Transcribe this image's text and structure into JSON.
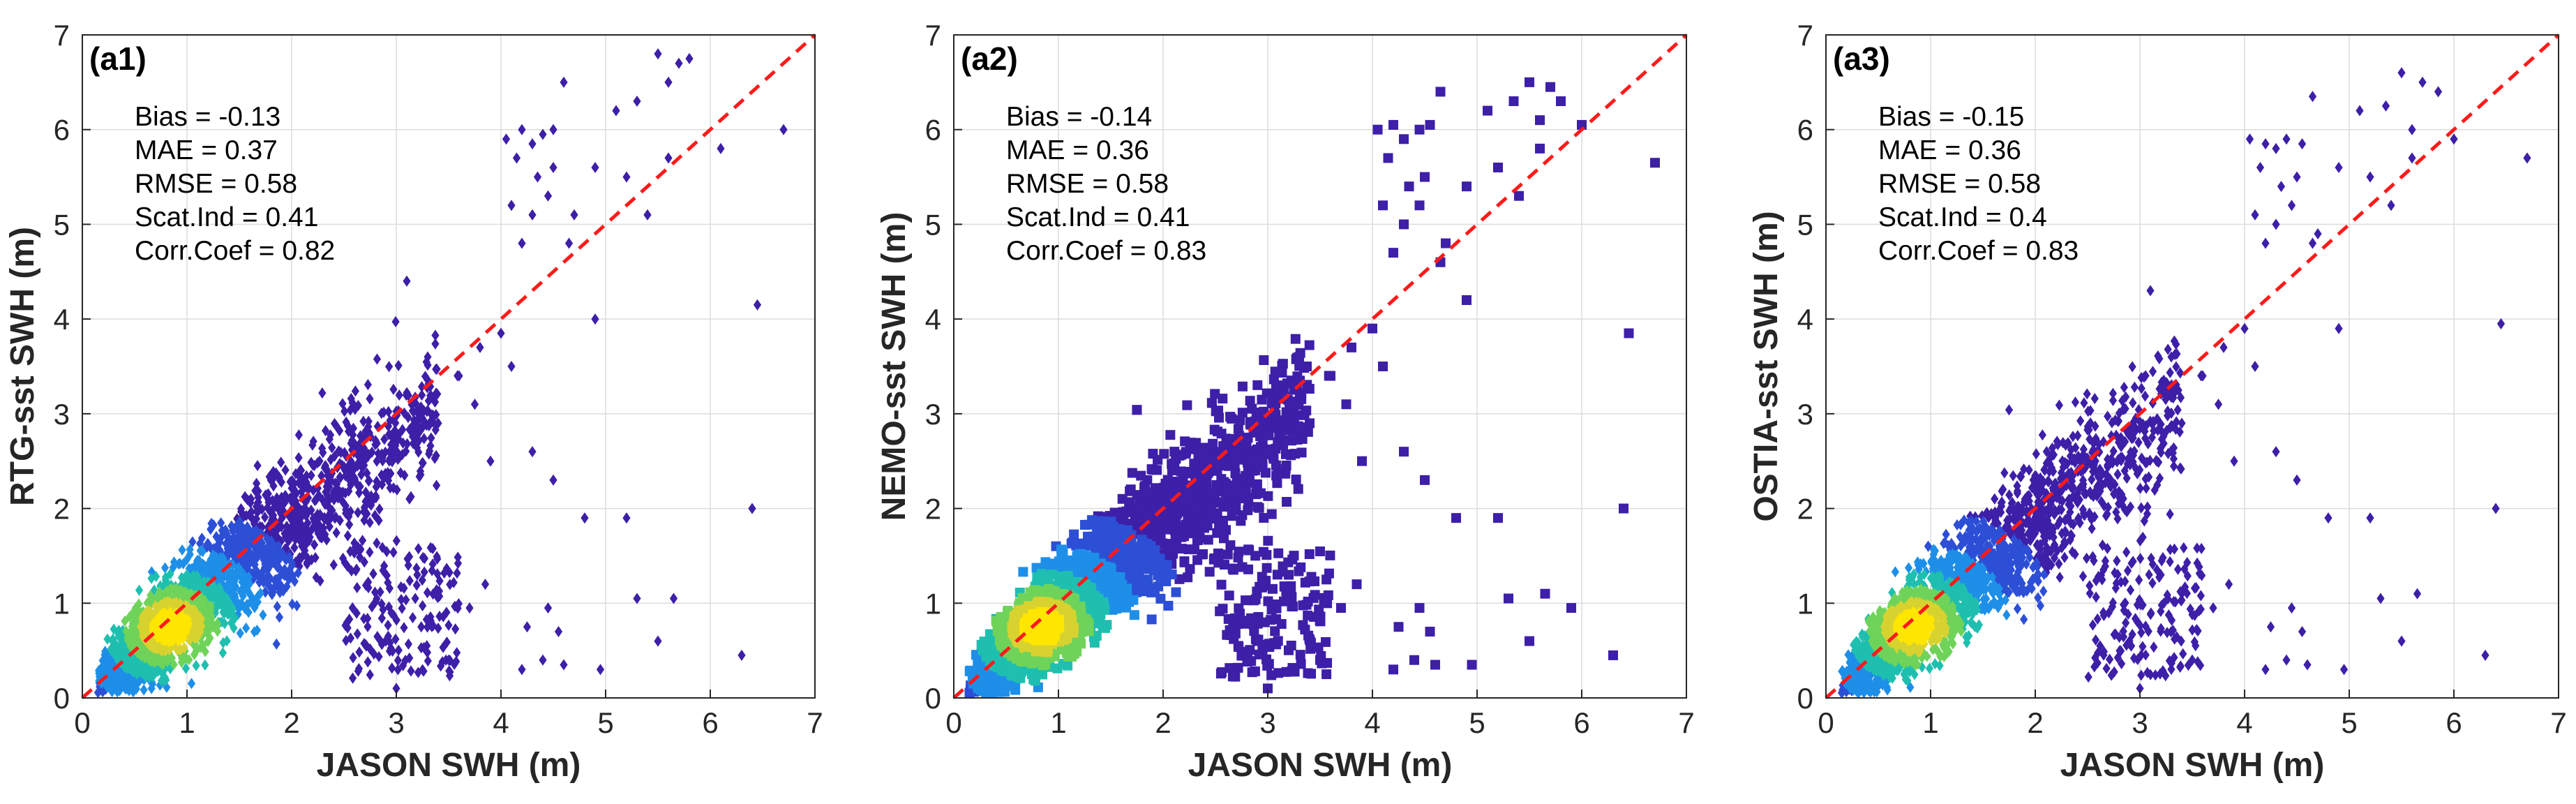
{
  "chart_data": [
    {
      "type": "scatter",
      "panel_label": "(a1)",
      "xlabel": "JASON SWH (m)",
      "ylabel": "RTG-sst SWH (m)",
      "xlim": [
        0,
        7
      ],
      "ylim": [
        0,
        7
      ],
      "xticks": [
        0,
        1,
        2,
        3,
        4,
        5,
        6,
        7
      ],
      "yticks": [
        0,
        1,
        2,
        3,
        4,
        5,
        6,
        7
      ],
      "grid": true,
      "reference_line": "y = x (red dashed)",
      "marker": "diamond",
      "stats": [
        "Bias = -0.13",
        "MAE = 0.37",
        "RMSE = 0.58",
        "Scat.Ind = 0.41",
        "Corr.Coef = 0.82"
      ],
      "color_scale": [
        "#3d1fa8",
        "#2c4fd6",
        "#1e8fe8",
        "#1fbfb0",
        "#6fd35a",
        "#d8d230",
        "#ffe600"
      ],
      "sparse_points": [
        [
          4.05,
          5.9
        ],
        [
          4.2,
          6.0
        ],
        [
          4.3,
          5.85
        ],
        [
          4.4,
          5.95
        ],
        [
          4.5,
          6.0
        ],
        [
          4.15,
          5.7
        ],
        [
          4.35,
          5.5
        ],
        [
          4.45,
          5.3
        ],
        [
          4.6,
          6.5
        ],
        [
          4.3,
          5.1
        ],
        [
          4.2,
          4.8
        ],
        [
          4.5,
          5.6
        ],
        [
          4.1,
          5.2
        ],
        [
          5.3,
          6.3
        ],
        [
          5.5,
          6.8
        ],
        [
          5.7,
          6.7
        ],
        [
          5.8,
          6.75
        ],
        [
          5.6,
          6.5
        ],
        [
          5.1,
          6.2
        ],
        [
          5.4,
          5.1
        ],
        [
          5.6,
          5.7
        ],
        [
          5.2,
          5.5
        ],
        [
          4.7,
          5.1
        ],
        [
          4.9,
          5.6
        ],
        [
          6.7,
          6.0
        ],
        [
          6.1,
          5.8
        ],
        [
          6.45,
          4.15
        ],
        [
          6.4,
          2.0
        ],
        [
          5.65,
          1.05
        ],
        [
          5.3,
          1.05
        ],
        [
          4.55,
          0.7
        ],
        [
          4.4,
          0.4
        ],
        [
          4.6,
          0.35
        ],
        [
          4.2,
          0.3
        ],
        [
          3.7,
          0.95
        ],
        [
          3.0,
          0.1
        ],
        [
          3.5,
          0.4
        ],
        [
          4.3,
          2.6
        ],
        [
          4.5,
          2.3
        ],
        [
          4.8,
          1.9
        ],
        [
          5.2,
          1.9
        ],
        [
          4.95,
          0.3
        ],
        [
          3.85,
          1.2
        ],
        [
          3.2,
          1.3
        ],
        [
          2.9,
          0.6
        ],
        [
          3.8,
          3.7
        ],
        [
          4.0,
          3.85
        ],
        [
          3.6,
          3.4
        ],
        [
          3.3,
          3.6
        ],
        [
          3.1,
          4.4
        ],
        [
          4.65,
          4.8
        ],
        [
          4.1,
          3.5
        ],
        [
          3.9,
          2.5
        ],
        [
          4.25,
          0.75
        ],
        [
          5.5,
          0.6
        ],
        [
          6.3,
          0.45
        ],
        [
          4.9,
          4.0
        ],
        [
          3.4,
          2.9
        ],
        [
          3.75,
          3.1
        ],
        [
          4.45,
          0.95
        ]
      ]
    },
    {
      "type": "scatter",
      "panel_label": "(a2)",
      "xlabel": "JASON SWH (m)",
      "ylabel": "NEMO-sst SWH (m)",
      "xlim": [
        0,
        7
      ],
      "ylim": [
        0,
        7
      ],
      "xticks": [
        0,
        1,
        2,
        3,
        4,
        5,
        6,
        7
      ],
      "yticks": [
        0,
        1,
        2,
        3,
        4,
        5,
        6,
        7
      ],
      "grid": true,
      "reference_line": "y = x (red dashed)",
      "marker": "square",
      "stats": [
        "Bias = -0.14",
        "MAE = 0.36",
        "RMSE = 0.58",
        "Scat.Ind = 0.41",
        "Corr.Coef = 0.83"
      ],
      "color_scale": [
        "#3d1fa8",
        "#2c4fd6",
        "#1e8fe8",
        "#1fbfb0",
        "#6fd35a",
        "#d8d230",
        "#ffe600"
      ],
      "sparse_points": [
        [
          4.05,
          6.0
        ],
        [
          4.2,
          6.05
        ],
        [
          4.3,
          5.9
        ],
        [
          4.45,
          6.0
        ],
        [
          4.55,
          6.05
        ],
        [
          4.15,
          5.7
        ],
        [
          4.35,
          5.4
        ],
        [
          4.45,
          5.2
        ],
        [
          4.65,
          6.4
        ],
        [
          4.3,
          5.0
        ],
        [
          4.2,
          4.7
        ],
        [
          4.5,
          5.5
        ],
        [
          4.1,
          5.2
        ],
        [
          5.35,
          6.3
        ],
        [
          5.5,
          6.5
        ],
        [
          5.7,
          6.45
        ],
        [
          5.8,
          6.3
        ],
        [
          5.6,
          6.1
        ],
        [
          5.1,
          6.2
        ],
        [
          5.4,
          5.3
        ],
        [
          5.6,
          5.8
        ],
        [
          5.2,
          5.6
        ],
        [
          4.7,
          4.8
        ],
        [
          4.9,
          5.4
        ],
        [
          6.7,
          5.65
        ],
        [
          6.0,
          6.05
        ],
        [
          6.45,
          3.85
        ],
        [
          6.4,
          2.0
        ],
        [
          5.65,
          1.1
        ],
        [
          5.3,
          1.05
        ],
        [
          4.55,
          0.7
        ],
        [
          4.4,
          0.4
        ],
        [
          4.6,
          0.35
        ],
        [
          4.2,
          0.3
        ],
        [
          3.7,
          0.95
        ],
        [
          3.0,
          0.1
        ],
        [
          3.5,
          0.4
        ],
        [
          4.3,
          2.6
        ],
        [
          4.5,
          2.3
        ],
        [
          4.8,
          1.9
        ],
        [
          5.2,
          1.9
        ],
        [
          4.95,
          0.35
        ],
        [
          3.85,
          1.2
        ],
        [
          3.2,
          1.3
        ],
        [
          2.9,
          0.6
        ],
        [
          3.8,
          3.7
        ],
        [
          4.0,
          3.9
        ],
        [
          3.6,
          3.4
        ],
        [
          3.3,
          3.6
        ],
        [
          4.65,
          4.6
        ],
        [
          4.1,
          3.5
        ],
        [
          3.9,
          2.5
        ],
        [
          4.25,
          0.75
        ],
        [
          5.5,
          0.6
        ],
        [
          6.3,
          0.45
        ],
        [
          4.9,
          4.2
        ],
        [
          3.4,
          2.9
        ],
        [
          3.75,
          3.1
        ],
        [
          4.45,
          0.95
        ],
        [
          5.9,
          0.95
        ]
      ]
    },
    {
      "type": "scatter",
      "panel_label": "(a3)",
      "xlabel": "JASON SWH (m)",
      "ylabel": "OSTIA-sst SWH (m)",
      "xlim": [
        0,
        7
      ],
      "ylim": [
        0,
        7
      ],
      "xticks": [
        0,
        1,
        2,
        3,
        4,
        5,
        6,
        7
      ],
      "yticks": [
        0,
        1,
        2,
        3,
        4,
        5,
        6,
        7
      ],
      "grid": true,
      "reference_line": "y = x (red dashed)",
      "marker": "diamond",
      "stats": [
        "Bias = -0.15",
        "MAE = 0.36",
        "RMSE = 0.58",
        "Scat.Ind = 0.4",
        "Corr.Coef = 0.83"
      ],
      "color_scale": [
        "#3d1fa8",
        "#2c4fd6",
        "#1e8fe8",
        "#1fbfb0",
        "#6fd35a",
        "#d8d230",
        "#ffe600"
      ],
      "sparse_points": [
        [
          4.05,
          5.9
        ],
        [
          4.2,
          5.85
        ],
        [
          4.3,
          5.8
        ],
        [
          4.4,
          5.9
        ],
        [
          4.55,
          5.85
        ],
        [
          4.15,
          5.6
        ],
        [
          4.35,
          5.4
        ],
        [
          4.45,
          5.2
        ],
        [
          4.65,
          6.35
        ],
        [
          4.3,
          5.0
        ],
        [
          4.2,
          4.8
        ],
        [
          4.5,
          5.5
        ],
        [
          4.1,
          5.1
        ],
        [
          5.35,
          6.25
        ],
        [
          5.5,
          6.6
        ],
        [
          5.7,
          6.5
        ],
        [
          5.85,
          6.4
        ],
        [
          5.6,
          6.0
        ],
        [
          5.1,
          6.2
        ],
        [
          5.4,
          5.2
        ],
        [
          5.6,
          5.7
        ],
        [
          5.2,
          5.5
        ],
        [
          4.7,
          4.9
        ],
        [
          4.9,
          5.6
        ],
        [
          6.7,
          5.7
        ],
        [
          6.0,
          5.9
        ],
        [
          6.45,
          3.95
        ],
        [
          6.4,
          2.0
        ],
        [
          5.65,
          1.1
        ],
        [
          5.3,
          1.05
        ],
        [
          4.55,
          0.7
        ],
        [
          4.4,
          0.4
        ],
        [
          4.6,
          0.35
        ],
        [
          4.2,
          0.3
        ],
        [
          3.7,
          0.95
        ],
        [
          3.0,
          0.1
        ],
        [
          3.5,
          0.4
        ],
        [
          4.3,
          2.6
        ],
        [
          4.5,
          2.3
        ],
        [
          4.8,
          1.9
        ],
        [
          5.2,
          1.9
        ],
        [
          4.95,
          0.3
        ],
        [
          3.85,
          1.2
        ],
        [
          3.2,
          1.3
        ],
        [
          2.9,
          0.6
        ],
        [
          3.8,
          3.7
        ],
        [
          4.0,
          3.9
        ],
        [
          3.6,
          3.4
        ],
        [
          3.3,
          3.6
        ],
        [
          3.1,
          4.3
        ],
        [
          4.65,
          4.8
        ],
        [
          4.1,
          3.5
        ],
        [
          3.9,
          2.5
        ],
        [
          4.25,
          0.75
        ],
        [
          5.5,
          0.6
        ],
        [
          6.3,
          0.45
        ],
        [
          4.9,
          3.9
        ],
        [
          3.4,
          2.9
        ],
        [
          3.75,
          3.1
        ],
        [
          4.45,
          0.95
        ]
      ]
    }
  ]
}
